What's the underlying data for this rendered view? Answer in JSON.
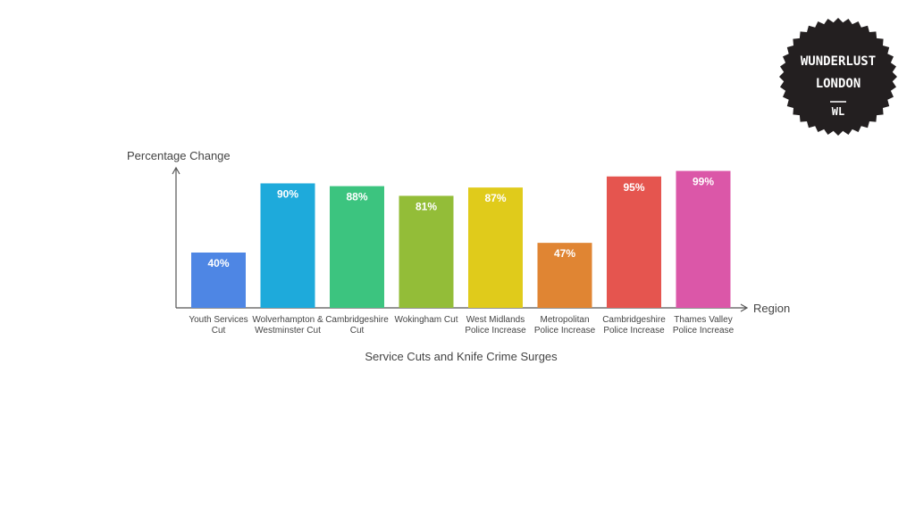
{
  "logo": {
    "line1": "WUNDERLUST",
    "line2": "LONDON",
    "mark": "WL",
    "background": "#231f20"
  },
  "chart_data": {
    "type": "bar",
    "title": "Service Cuts and Knife Crime Surges",
    "xlabel": "Region",
    "ylabel": "Percentage Change",
    "ylim": [
      0,
      100
    ],
    "grid": false,
    "categories": [
      "Youth Services Cut",
      "Wolverhampton & Westminster Cut",
      "Cambridgeshire Cut",
      "Wokingham Cut",
      "West Midlands Police Increase",
      "Metropolitan Police Increase",
      "Cambridgeshire Police Increase",
      "Thames Valley Police Increase"
    ],
    "values": [
      40,
      90,
      88,
      81,
      87,
      47,
      95,
      99
    ],
    "data_labels": [
      "40%",
      "90%",
      "88%",
      "81%",
      "87%",
      "47%",
      "95%",
      "99%"
    ],
    "colors": [
      "#4e86e4",
      "#1eaadb",
      "#3cc47f",
      "#93bd38",
      "#e0cb1b",
      "#e08533",
      "#e5554f",
      "#db57a8"
    ]
  }
}
